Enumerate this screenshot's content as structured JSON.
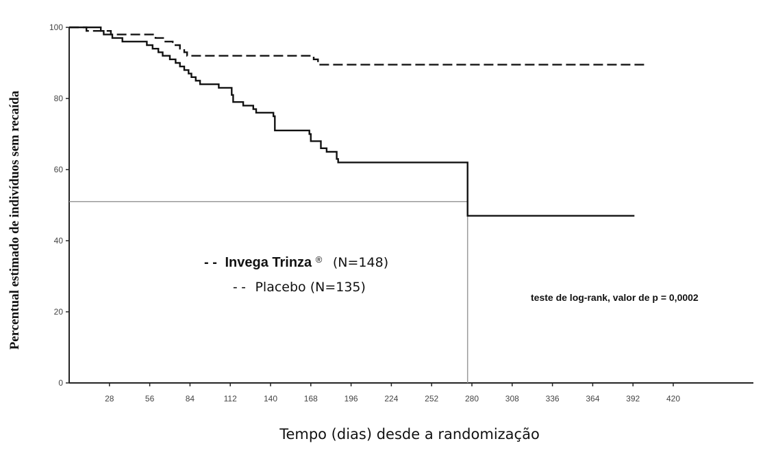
{
  "chart_data": {
    "type": "line",
    "ylabel": "Percentual estimado de indivíduos sem recaída",
    "xlabel": "Tempo (dias) desde a randomização",
    "xlim": [
      0,
      448
    ],
    "ylim": [
      0,
      100
    ],
    "x_ticks": [
      28,
      56,
      84,
      112,
      140,
      168,
      196,
      224,
      252,
      280,
      308,
      336,
      364,
      392,
      420
    ],
    "y_ticks": [
      0,
      20,
      40,
      60,
      80,
      100
    ],
    "legend": {
      "prefix_bold": "- -",
      "prefix_dashed": "- -",
      "bold_entry_name": "Invega Trinza",
      "bold_entry_mark": "®",
      "bold_entry_n": "(N=148)",
      "dashed_entry": "Placebo (N=135)",
      "placement": "center-left"
    },
    "annotation": "teste de log-rank, valor de p = 0,0002",
    "median_reference": {
      "y": 51,
      "x": 277
    },
    "series": [
      {
        "name": "Placebo",
        "style": "solid",
        "points": [
          [
            0,
            100
          ],
          [
            20,
            100
          ],
          [
            22,
            99
          ],
          [
            24,
            98
          ],
          [
            29,
            98
          ],
          [
            30,
            97
          ],
          [
            35,
            97
          ],
          [
            37,
            96
          ],
          [
            50,
            96
          ],
          [
            54,
            95
          ],
          [
            58,
            94
          ],
          [
            62,
            93
          ],
          [
            65,
            92
          ],
          [
            70,
            91
          ],
          [
            74,
            90
          ],
          [
            77,
            89
          ],
          [
            80,
            88
          ],
          [
            83,
            87
          ],
          [
            85,
            86
          ],
          [
            88,
            85
          ],
          [
            91,
            84
          ],
          [
            100,
            84
          ],
          [
            104,
            83
          ],
          [
            110,
            83
          ],
          [
            113,
            81
          ],
          [
            114,
            79
          ],
          [
            119,
            79
          ],
          [
            121,
            78
          ],
          [
            126,
            78
          ],
          [
            128,
            77
          ],
          [
            130,
            76
          ],
          [
            140,
            76
          ],
          [
            142,
            75
          ],
          [
            143,
            71
          ],
          [
            165,
            71
          ],
          [
            167,
            70
          ],
          [
            168,
            68
          ],
          [
            172,
            68
          ],
          [
            175,
            66
          ],
          [
            179,
            65
          ],
          [
            184,
            65
          ],
          [
            186,
            63
          ],
          [
            187,
            62
          ],
          [
            276,
            62
          ],
          [
            277,
            47
          ],
          [
            393,
            47
          ]
        ]
      },
      {
        "name": "Invega Trinza",
        "style": "dashed",
        "points": [
          [
            0,
            100
          ],
          [
            12,
            99
          ],
          [
            25,
            99
          ],
          [
            29,
            98
          ],
          [
            57,
            98
          ],
          [
            60,
            97
          ],
          [
            66,
            96
          ],
          [
            72,
            95
          ],
          [
            77,
            94
          ],
          [
            80,
            93
          ],
          [
            82,
            92
          ],
          [
            168,
            92
          ],
          [
            170,
            91
          ],
          [
            173,
            89.5
          ],
          [
            400,
            89.5
          ]
        ]
      }
    ]
  }
}
